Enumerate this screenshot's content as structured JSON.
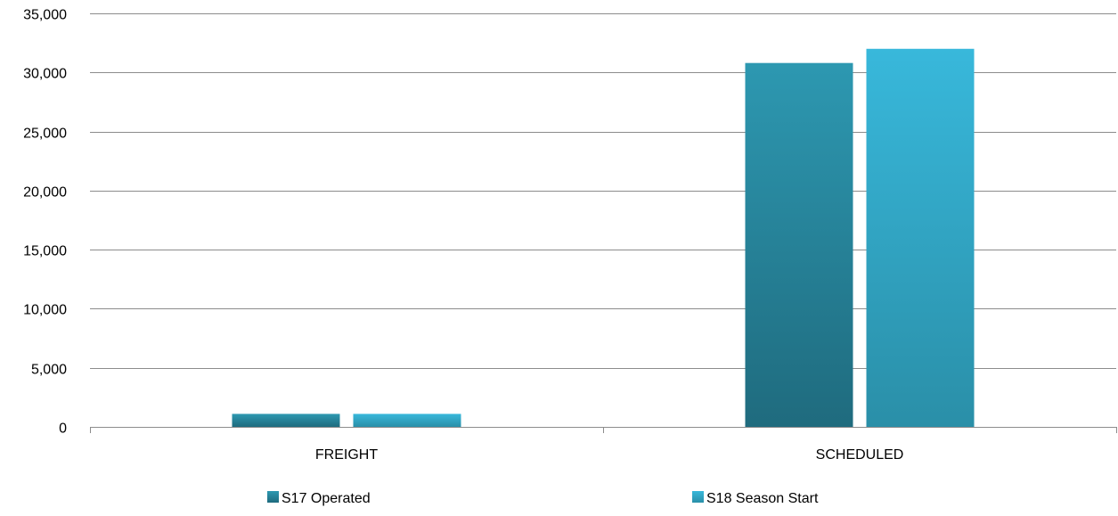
{
  "chart_data": {
    "type": "bar",
    "categories": [
      "FREIGHT",
      "SCHEDULED"
    ],
    "series": [
      {
        "name": "S17 Operated",
        "values": [
          1100,
          30800
        ],
        "color": "#2B8AA0"
      },
      {
        "name": "S18 Season Start",
        "values": [
          1100,
          32000
        ],
        "color": "#35B3D6"
      }
    ],
    "ylim": [
      0,
      35000
    ],
    "yticks": [
      0,
      5000,
      10000,
      15000,
      20000,
      25000,
      30000,
      35000
    ],
    "ytick_labels": [
      "0",
      "5,000",
      "10,000",
      "15,000",
      "20,000",
      "25,000",
      "30,000",
      "35,000"
    ],
    "grid": true,
    "legend_position": "bottom",
    "title": "",
    "xlabel": "",
    "ylabel": ""
  }
}
